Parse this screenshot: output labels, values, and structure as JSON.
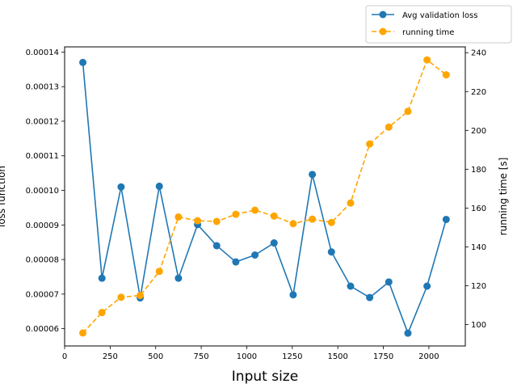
{
  "chart_data": {
    "type": "line",
    "xlabel": "Input size",
    "ylabel_left": "loss function",
    "ylabel_right": "running time [s]",
    "xlim": [
      0,
      2200
    ],
    "ylim_left": [
      5.5e-05,
      0.0001415
    ],
    "ylim_right": [
      89,
      243
    ],
    "x_ticks": [
      0,
      250,
      500,
      750,
      1000,
      1250,
      1500,
      1750,
      2000
    ],
    "x_tick_labels": [
      "0",
      "250",
      "500",
      "750",
      "1000",
      "1250",
      "1500",
      "1750",
      "2000"
    ],
    "y_left_ticks": [
      6e-05,
      7e-05,
      8e-05,
      9e-05,
      0.0001,
      0.00011,
      0.00012,
      0.00013,
      0.00014
    ],
    "y_left_tick_labels": [
      "0.00006",
      "0.00007",
      "0.00008",
      "0.00009",
      "0.00010",
      "0.00011",
      "0.00012",
      "0.00013",
      "0.00014"
    ],
    "y_right_ticks": [
      100,
      120,
      140,
      160,
      180,
      200,
      220,
      240
    ],
    "y_right_tick_labels": [
      "100",
      "120",
      "140",
      "160",
      "180",
      "200",
      "220",
      "240"
    ],
    "grid": false,
    "legend_position": "top-right",
    "series": [
      {
        "name": "Avg validation loss",
        "axis": "left",
        "color": "#1f77b4",
        "linestyle": "solid",
        "marker": "circle",
        "x": [
          100,
          205,
          310,
          415,
          520,
          625,
          730,
          835,
          940,
          1045,
          1150,
          1255,
          1360,
          1465,
          1570,
          1675,
          1780,
          1885,
          1990,
          2095
        ],
        "values": [
          0.000137,
          7.46e-05,
          0.000101,
          6.89e-05,
          0.0001012,
          7.46e-05,
          9.01e-05,
          8.4e-05,
          7.93e-05,
          8.13e-05,
          8.48e-05,
          6.98e-05,
          0.0001046,
          8.22e-05,
          7.23e-05,
          6.9e-05,
          7.35e-05,
          5.87e-05,
          7.23e-05,
          9.16e-05
        ]
      },
      {
        "name": "running time",
        "axis": "right",
        "color": "#ffa500",
        "linestyle": "dashed",
        "marker": "circle",
        "x": [
          100,
          205,
          310,
          415,
          520,
          625,
          730,
          835,
          940,
          1045,
          1150,
          1255,
          1360,
          1465,
          1570,
          1675,
          1780,
          1885,
          1990,
          2095
        ],
        "values": [
          95.7,
          106.2,
          114.1,
          115,
          127.4,
          155.4,
          153.5,
          153.1,
          156.8,
          158.9,
          155.9,
          152,
          154.3,
          152.6,
          162.6,
          193,
          201.7,
          209.8,
          236.3,
          228.6
        ]
      }
    ]
  }
}
